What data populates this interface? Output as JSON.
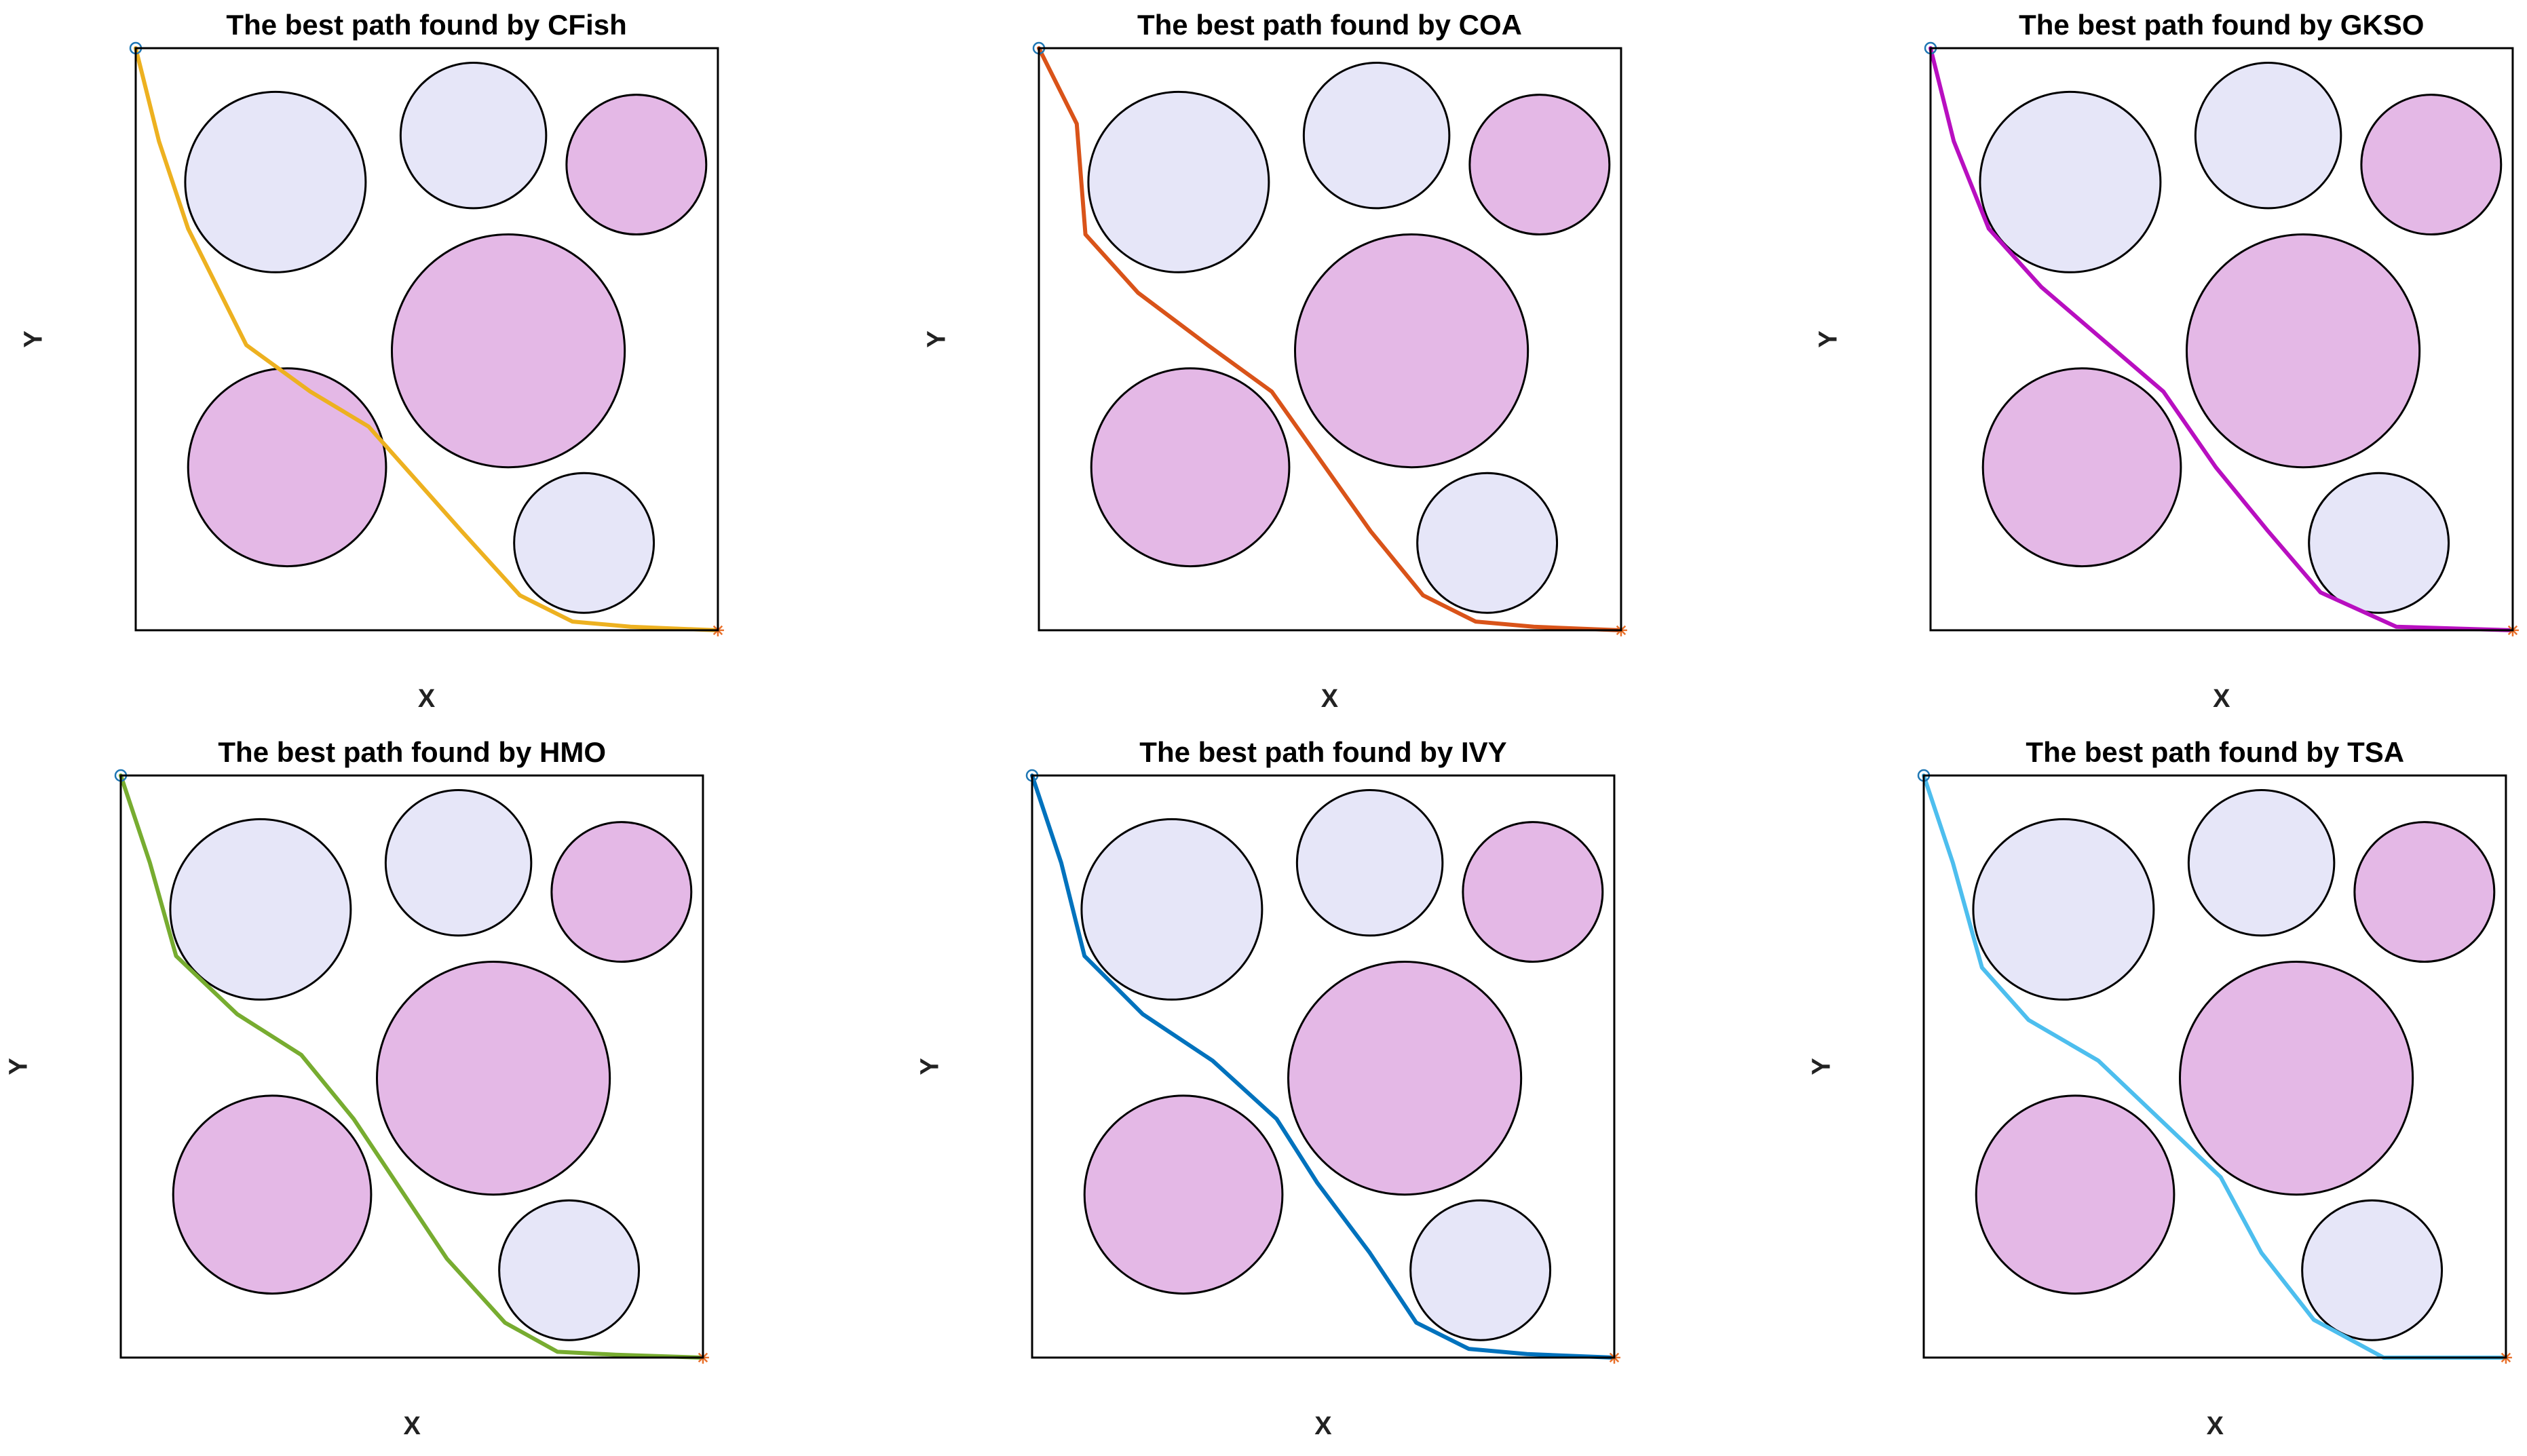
{
  "colors": {
    "obstacle_light": "#e6e6f8",
    "obstacle_pink": "#e4b8e6",
    "obstacle_edge": "#000000",
    "start_marker": "#1f77b4",
    "end_marker": "#e8702a"
  },
  "chart_data": [
    {
      "type": "line",
      "title": "The best path found by CFish",
      "xlabel": "X",
      "ylabel": "Y",
      "xlim": [
        0,
        100
      ],
      "ylim": [
        0,
        100
      ],
      "series": [
        {
          "color": "#edb120",
          "points": [
            [
              0,
              100
            ],
            [
              4,
              84
            ],
            [
              9,
              69
            ],
            [
              19,
              49
            ],
            [
              30,
              41
            ],
            [
              40,
              35
            ],
            [
              56,
              17
            ],
            [
              66,
              6
            ],
            [
              75,
              1.5
            ],
            [
              85,
              0.6
            ],
            [
              100,
              0
            ]
          ]
        }
      ],
      "obstacles": [
        {
          "cx": 24,
          "cy": 77,
          "r": 15.5,
          "fill": "light"
        },
        {
          "cx": 58,
          "cy": 85,
          "r": 12.5,
          "fill": "light"
        },
        {
          "cx": 86,
          "cy": 80,
          "r": 12,
          "fill": "pink"
        },
        {
          "cx": 64,
          "cy": 48,
          "r": 20,
          "fill": "pink"
        },
        {
          "cx": 26,
          "cy": 28,
          "r": 17,
          "fill": "pink"
        },
        {
          "cx": 77,
          "cy": 15,
          "r": 12,
          "fill": "light"
        }
      ]
    },
    {
      "type": "line",
      "title": "The best path found by COA",
      "xlabel": "X",
      "ylabel": "Y",
      "xlim": [
        0,
        100
      ],
      "ylim": [
        0,
        100
      ],
      "series": [
        {
          "color": "#d95319",
          "points": [
            [
              0,
              100
            ],
            [
              6.5,
              87
            ],
            [
              8,
              68
            ],
            [
              17,
              58
            ],
            [
              29,
              49
            ],
            [
              40,
              41
            ],
            [
              57,
              17
            ],
            [
              66,
              6
            ],
            [
              75,
              1.5
            ],
            [
              85,
              0.6
            ],
            [
              100,
              0
            ]
          ]
        }
      ],
      "obstacles": [
        {
          "cx": 24,
          "cy": 77,
          "r": 15.5,
          "fill": "light"
        },
        {
          "cx": 58,
          "cy": 85,
          "r": 12.5,
          "fill": "light"
        },
        {
          "cx": 86,
          "cy": 80,
          "r": 12,
          "fill": "pink"
        },
        {
          "cx": 64,
          "cy": 48,
          "r": 20,
          "fill": "pink"
        },
        {
          "cx": 26,
          "cy": 28,
          "r": 17,
          "fill": "pink"
        },
        {
          "cx": 77,
          "cy": 15,
          "r": 12,
          "fill": "light"
        }
      ]
    },
    {
      "type": "line",
      "title": "The best path found by GKSO",
      "xlabel": "X",
      "ylabel": "Y",
      "xlim": [
        0,
        100
      ],
      "ylim": [
        0,
        100
      ],
      "series": [
        {
          "color": "#b80fc0",
          "points": [
            [
              0,
              100
            ],
            [
              4,
              84
            ],
            [
              10,
              69
            ],
            [
              19,
              59
            ],
            [
              40,
              41
            ],
            [
              49,
              28
            ],
            [
              58,
              17
            ],
            [
              67,
              6.5
            ],
            [
              80,
              0.6
            ],
            [
              100,
              0
            ]
          ]
        }
      ],
      "obstacles": [
        {
          "cx": 24,
          "cy": 77,
          "r": 15.5,
          "fill": "light"
        },
        {
          "cx": 58,
          "cy": 85,
          "r": 12.5,
          "fill": "light"
        },
        {
          "cx": 86,
          "cy": 80,
          "r": 12,
          "fill": "pink"
        },
        {
          "cx": 64,
          "cy": 48,
          "r": 20,
          "fill": "pink"
        },
        {
          "cx": 26,
          "cy": 28,
          "r": 17,
          "fill": "pink"
        },
        {
          "cx": 77,
          "cy": 15,
          "r": 12,
          "fill": "light"
        }
      ]
    },
    {
      "type": "line",
      "title": "The best path found by HMO",
      "xlabel": "X",
      "ylabel": "Y",
      "xlim": [
        0,
        100
      ],
      "ylim": [
        0,
        100
      ],
      "series": [
        {
          "color": "#77ac30",
          "points": [
            [
              0,
              100
            ],
            [
              5,
              85
            ],
            [
              9.5,
              69
            ],
            [
              20,
              59
            ],
            [
              31,
              52
            ],
            [
              40,
              41
            ],
            [
              56,
              17
            ],
            [
              66,
              6
            ],
            [
              75,
              1
            ],
            [
              85,
              0.5
            ],
            [
              100,
              0
            ]
          ]
        }
      ],
      "obstacles": [
        {
          "cx": 24,
          "cy": 77,
          "r": 15.5,
          "fill": "light"
        },
        {
          "cx": 58,
          "cy": 85,
          "r": 12.5,
          "fill": "light"
        },
        {
          "cx": 86,
          "cy": 80,
          "r": 12,
          "fill": "pink"
        },
        {
          "cx": 64,
          "cy": 48,
          "r": 20,
          "fill": "pink"
        },
        {
          "cx": 26,
          "cy": 28,
          "r": 17,
          "fill": "pink"
        },
        {
          "cx": 77,
          "cy": 15,
          "r": 12,
          "fill": "light"
        }
      ]
    },
    {
      "type": "line",
      "title": "The best path found by IVY",
      "xlabel": "X",
      "ylabel": "Y",
      "xlim": [
        0,
        100
      ],
      "ylim": [
        0,
        100
      ],
      "series": [
        {
          "color": "#0072bd",
          "points": [
            [
              0,
              100
            ],
            [
              5,
              85
            ],
            [
              9,
              69
            ],
            [
              19,
              59
            ],
            [
              31,
              51
            ],
            [
              42,
              41
            ],
            [
              49,
              30
            ],
            [
              58,
              18
            ],
            [
              66,
              6
            ],
            [
              75,
              1.5
            ],
            [
              85,
              0.6
            ],
            [
              100,
              0
            ]
          ]
        }
      ],
      "obstacles": [
        {
          "cx": 24,
          "cy": 77,
          "r": 15.5,
          "fill": "light"
        },
        {
          "cx": 58,
          "cy": 85,
          "r": 12.5,
          "fill": "light"
        },
        {
          "cx": 86,
          "cy": 80,
          "r": 12,
          "fill": "pink"
        },
        {
          "cx": 64,
          "cy": 48,
          "r": 20,
          "fill": "pink"
        },
        {
          "cx": 26,
          "cy": 28,
          "r": 17,
          "fill": "pink"
        },
        {
          "cx": 77,
          "cy": 15,
          "r": 12,
          "fill": "light"
        }
      ]
    },
    {
      "type": "line",
      "title": "The best path found by TSA",
      "xlabel": "X",
      "ylabel": "Y",
      "xlim": [
        0,
        100
      ],
      "ylim": [
        0,
        100
      ],
      "series": [
        {
          "color": "#4dbeee",
          "points": [
            [
              0,
              100
            ],
            [
              5,
              85
            ],
            [
              10,
              67
            ],
            [
              18,
              58
            ],
            [
              30,
              51
            ],
            [
              51,
              31
            ],
            [
              58,
              18
            ],
            [
              67,
              6.5
            ],
            [
              79,
              0
            ],
            [
              100,
              0
            ]
          ]
        }
      ],
      "obstacles": [
        {
          "cx": 24,
          "cy": 77,
          "r": 15.5,
          "fill": "light"
        },
        {
          "cx": 58,
          "cy": 85,
          "r": 12.5,
          "fill": "light"
        },
        {
          "cx": 86,
          "cy": 80,
          "r": 12,
          "fill": "pink"
        },
        {
          "cx": 64,
          "cy": 48,
          "r": 20,
          "fill": "pink"
        },
        {
          "cx": 26,
          "cy": 28,
          "r": 17,
          "fill": "pink"
        },
        {
          "cx": 77,
          "cy": 15,
          "r": 12,
          "fill": "light"
        }
      ]
    }
  ]
}
